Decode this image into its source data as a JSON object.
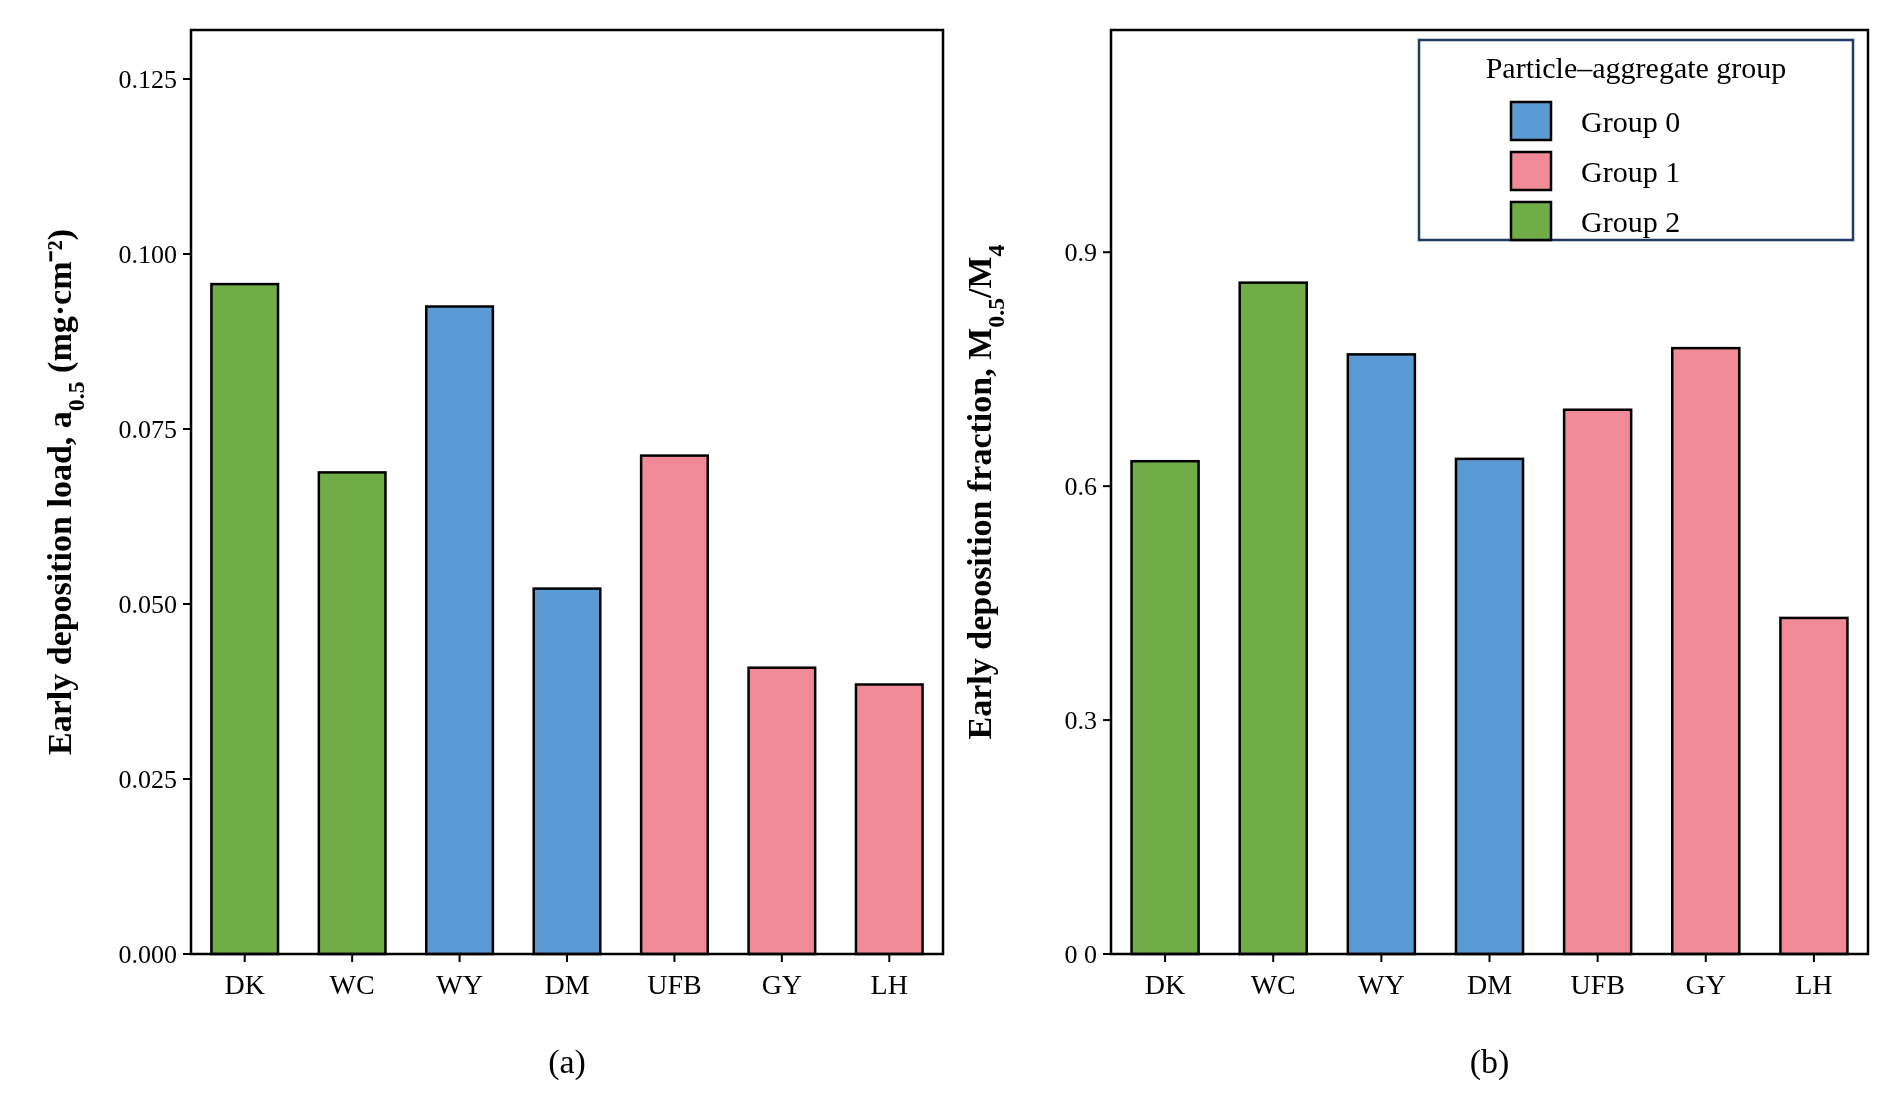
{
  "chart_data": [
    {
      "type": "bar",
      "title": "(a)",
      "ylabel": "Early deposition load, a$_{0.5}$ (mg·cm⁻²)",
      "categories": [
        "DK",
        "WC",
        "WY",
        "DM",
        "UFB",
        "GY",
        "LH"
      ],
      "series": [
        {
          "color": "#5b9bd5",
          "values": [
            null,
            null,
            0.0925,
            0.0522,
            null,
            null,
            null
          ]
        },
        {
          "color": "#f08a96",
          "values": [
            null,
            null,
            null,
            null,
            0.0712,
            0.0409,
            0.0385
          ]
        },
        {
          "color": "#70ad47",
          "values": [
            0.0957,
            0.0688,
            null,
            null,
            null,
            null,
            null
          ]
        }
      ],
      "ylim": [
        0,
        0.132
      ],
      "yticks": [
        {
          "value": 0,
          "label": "0.000"
        },
        {
          "value": 0.025,
          "label": "0.025"
        },
        {
          "value": 0.05,
          "label": "0.050"
        },
        {
          "value": 0.075,
          "label": "0.075"
        },
        {
          "value": 0.1,
          "label": "0.100"
        },
        {
          "value": 0.125,
          "label": "0.125"
        }
      ],
      "grid": false,
      "legend": false
    },
    {
      "type": "bar",
      "title": "(b)",
      "ylabel": "Early deposition fraction, M$_{0.5}$/M$_{4}$",
      "legend_title": "Particle–aggregate group",
      "categories": [
        "DK",
        "WC",
        "WY",
        "DM",
        "UFB",
        "GY",
        "LH"
      ],
      "series": [
        {
          "name": "Group 0",
          "color": "#5b9bd5",
          "values": [
            null,
            null,
            0.769,
            0.635,
            null,
            null,
            null
          ]
        },
        {
          "name": "Group 1",
          "color": "#f08a96",
          "values": [
            null,
            null,
            null,
            null,
            0.698,
            0.777,
            0.431
          ]
        },
        {
          "name": "Group 2",
          "color": "#70ad47",
          "values": [
            0.632,
            0.861,
            null,
            null,
            null,
            null,
            null
          ]
        }
      ],
      "ylim": [
        0,
        1.185
      ],
      "yticks": [
        {
          "value": 0,
          "label": "0 0"
        },
        0.3,
        0.6,
        0.9
      ],
      "grid": false,
      "legend": "top right"
    }
  ]
}
